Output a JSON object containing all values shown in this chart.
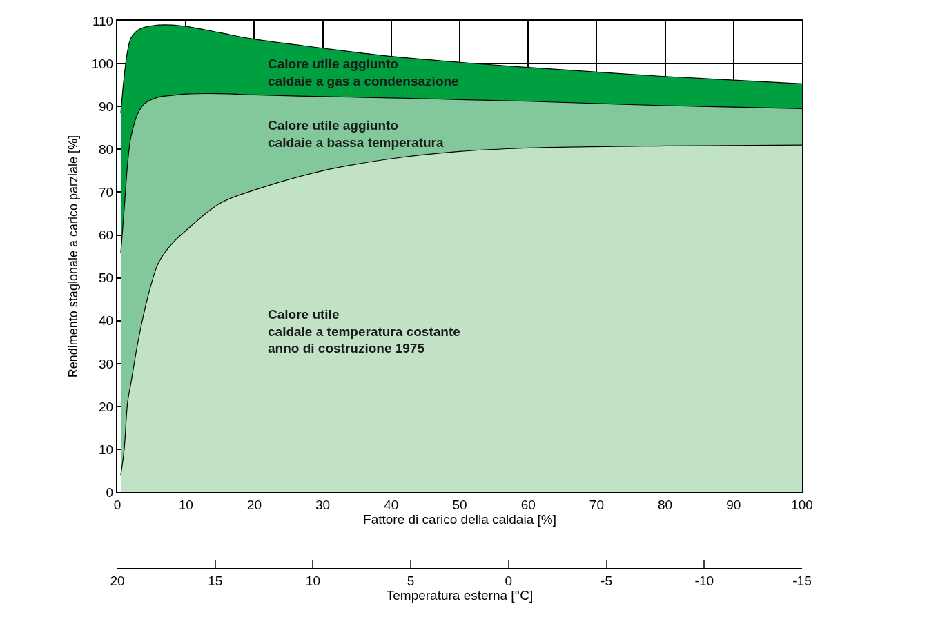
{
  "chart_data": {
    "type": "area",
    "xlabel": "Fattore di carico della caldaia [%]",
    "ylabel": "Rendimento stagionale a carico parziale [%]",
    "x2label": "Temperatura esterna [°C]",
    "xlim": [
      0,
      100
    ],
    "xticks": [
      0,
      10,
      20,
      30,
      40,
      50,
      60,
      70,
      80,
      90,
      100
    ],
    "ylim": [
      0,
      110
    ],
    "yticks": [
      0,
      10,
      20,
      30,
      40,
      50,
      60,
      70,
      80,
      90,
      100,
      110
    ],
    "x2lim": [
      20,
      -15
    ],
    "x2ticks": [
      20,
      15,
      10,
      5,
      0,
      -5,
      -10,
      -15
    ],
    "grid": true,
    "legend": false,
    "marker": "none",
    "line_style": "solid",
    "x": [
      0.5,
      1,
      1.5,
      2,
      3,
      4,
      5,
      6,
      8,
      10,
      15,
      20,
      30,
      40,
      50,
      60,
      80,
      100
    ],
    "series": [
      {
        "name": "Calore utile\ncaldaie a temperatura costante\nanno di costruzione 1975",
        "color": "#c2e2c6",
        "values": [
          4,
          10,
          21,
          25.6,
          35,
          42.6,
          48.8,
          53.5,
          58,
          61,
          67.4,
          70.5,
          75,
          77.8,
          79.5,
          80.3,
          80.8,
          81
        ]
      },
      {
        "name": "Calore utile aggiunto\ncaldaie a bassa temperatura",
        "color": "#82c89a",
        "values": [
          55.8,
          66,
          76.7,
          83,
          88.4,
          90.7,
          91.6,
          92.2,
          92.6,
          92.9,
          93,
          92.7,
          92.3,
          92,
          91.6,
          91.2,
          90.2,
          89.5
        ]
      },
      {
        "name": "Calore utile aggiunto\ncaldaie a gas a condensazione",
        "color": "#00a040",
        "values": [
          88.4,
          97,
          103,
          106,
          107.8,
          108.5,
          108.8,
          109,
          109,
          108.7,
          107.2,
          105.7,
          103.6,
          101.7,
          100.3,
          99.1,
          97,
          95.3
        ]
      }
    ]
  }
}
